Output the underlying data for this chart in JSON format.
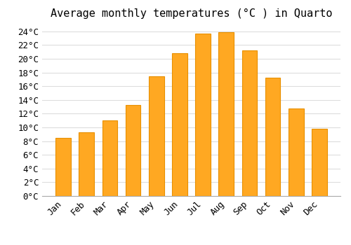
{
  "title": "Average monthly temperatures (°C ) in Quarto",
  "months": [
    "Jan",
    "Feb",
    "Mar",
    "Apr",
    "May",
    "Jun",
    "Jul",
    "Aug",
    "Sep",
    "Oct",
    "Nov",
    "Dec"
  ],
  "temperatures": [
    8.5,
    9.3,
    11.0,
    13.3,
    17.4,
    20.8,
    23.7,
    23.9,
    21.2,
    17.2,
    12.8,
    9.8
  ],
  "bar_color": "#FFA822",
  "bar_edge_color": "#E89000",
  "background_color": "#FFFFFF",
  "grid_color": "#DDDDDD",
  "ylim": [
    0,
    25
  ],
  "ytick_values": [
    0,
    2,
    4,
    6,
    8,
    10,
    12,
    14,
    16,
    18,
    20,
    22,
    24
  ],
  "title_fontsize": 11,
  "tick_fontsize": 9,
  "font_family": "monospace"
}
